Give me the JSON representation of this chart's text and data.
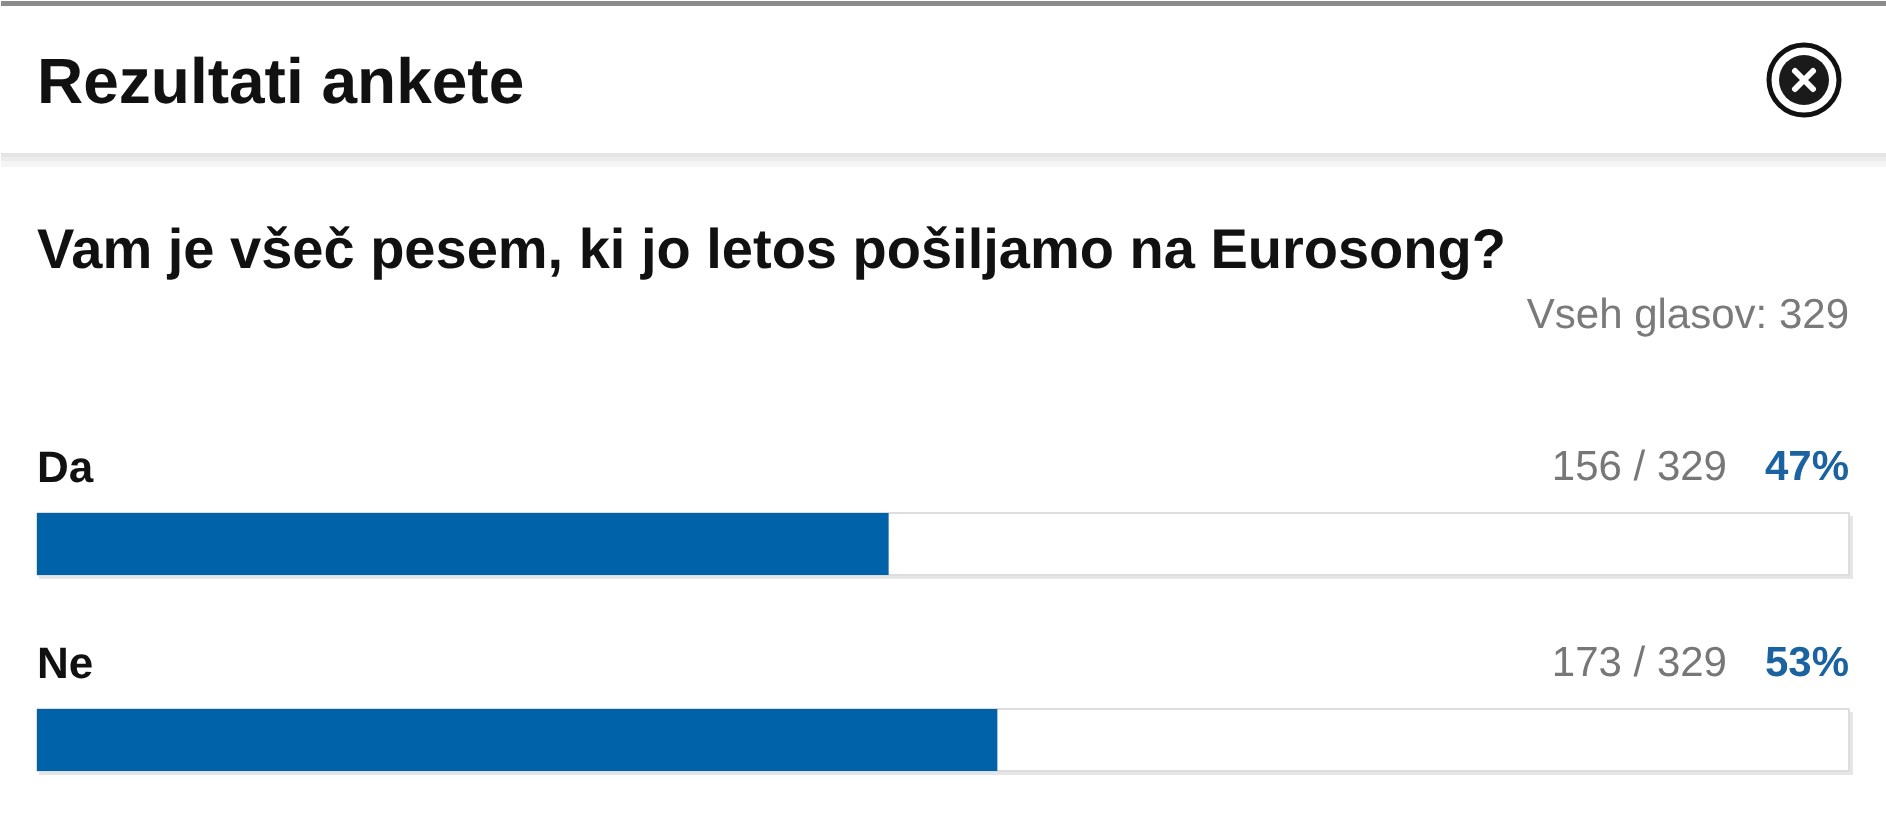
{
  "chart_data": {
    "type": "bar",
    "orientation": "horizontal",
    "title": "Rezultati ankete",
    "subtitle": "Vam je všeč pesem, ki jo letos pošiljamo na Eurosong?",
    "categories": [
      "Da",
      "Ne"
    ],
    "values": [
      47,
      53
    ],
    "value_labels": [
      "47%",
      "53%"
    ],
    "color": "#0062a8",
    "xlim": [
      0,
      100
    ],
    "tick_labels": false,
    "annotations": [
      "Vseh glasov: 329",
      "156 / 329",
      "173 / 329"
    ]
  }
}
